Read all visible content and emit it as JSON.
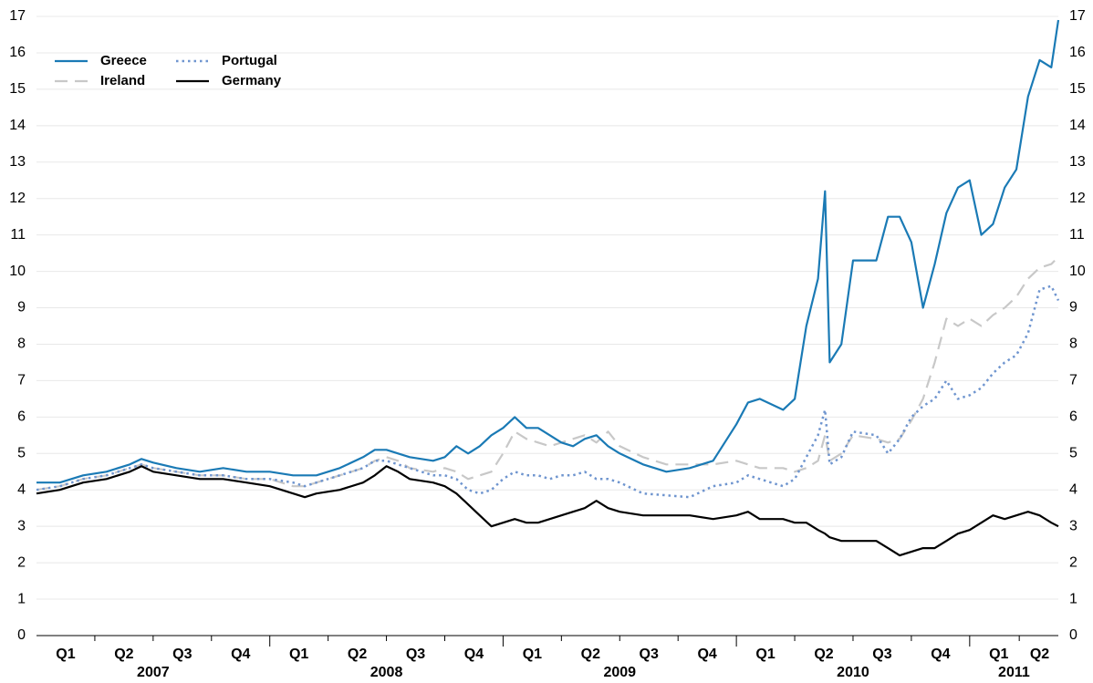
{
  "chart_data": {
    "type": "line",
    "x": [
      2007.0,
      2007.1,
      2007.2,
      2007.3,
      2007.4,
      2007.45,
      2007.5,
      2007.6,
      2007.7,
      2007.8,
      2007.9,
      2008.0,
      2008.1,
      2008.15,
      2008.2,
      2008.3,
      2008.4,
      2008.45,
      2008.5,
      2008.55,
      2008.6,
      2008.7,
      2008.75,
      2008.8,
      2008.85,
      2008.9,
      2008.95,
      2009.0,
      2009.05,
      2009.1,
      2009.15,
      2009.2,
      2009.25,
      2009.3,
      2009.35,
      2009.4,
      2009.45,
      2009.5,
      2009.6,
      2009.7,
      2009.8,
      2009.9,
      2010.0,
      2010.05,
      2010.1,
      2010.2,
      2010.25,
      2010.3,
      2010.35,
      2010.38,
      2010.4,
      2010.45,
      2010.5,
      2010.6,
      2010.65,
      2010.7,
      2010.75,
      2010.8,
      2010.85,
      2010.9,
      2010.95,
      2011.0,
      2011.05,
      2011.1,
      2011.15,
      2011.2,
      2011.25,
      2011.3,
      2011.35,
      2011.38
    ],
    "series": [
      {
        "name": "Greece",
        "color": "#1a7ab5",
        "dash": "solid",
        "values": [
          4.2,
          4.2,
          4.4,
          4.5,
          4.7,
          4.85,
          4.75,
          4.6,
          4.5,
          4.6,
          4.5,
          4.5,
          4.4,
          4.4,
          4.4,
          4.6,
          4.9,
          5.1,
          5.1,
          5.0,
          4.9,
          4.8,
          4.9,
          5.2,
          5.0,
          5.2,
          5.5,
          5.7,
          6.0,
          5.7,
          5.7,
          5.5,
          5.3,
          5.2,
          5.4,
          5.5,
          5.2,
          5.0,
          4.7,
          4.5,
          4.6,
          4.8,
          5.8,
          6.4,
          6.5,
          6.2,
          6.5,
          8.5,
          9.8,
          12.2,
          7.5,
          8.0,
          10.3,
          10.3,
          11.5,
          11.5,
          10.8,
          9.0,
          10.2,
          11.6,
          12.3,
          12.5,
          11.0,
          11.3,
          12.3,
          12.8,
          14.8,
          15.8,
          15.6,
          16.9
        ]
      },
      {
        "name": "Ireland",
        "color": "#c8c8c8",
        "dash": "dashed",
        "values": [
          4.0,
          4.1,
          4.3,
          4.4,
          4.6,
          4.7,
          4.6,
          4.5,
          4.4,
          4.4,
          4.3,
          4.3,
          4.1,
          4.1,
          4.2,
          4.4,
          4.6,
          4.8,
          4.9,
          4.8,
          4.6,
          4.5,
          4.6,
          4.5,
          4.3,
          4.4,
          4.5,
          5.0,
          5.6,
          5.4,
          5.3,
          5.2,
          5.3,
          5.4,
          5.5,
          5.3,
          5.6,
          5.2,
          4.9,
          4.7,
          4.7,
          4.7,
          4.8,
          4.7,
          4.6,
          4.6,
          4.5,
          4.6,
          4.8,
          5.5,
          4.8,
          5.0,
          5.5,
          5.4,
          5.3,
          5.4,
          5.9,
          6.5,
          7.5,
          8.7,
          8.5,
          8.7,
          8.5,
          8.8,
          9.0,
          9.3,
          9.8,
          10.1,
          10.2,
          10.4
        ]
      },
      {
        "name": "Portugal",
        "color": "#6f95cf",
        "dash": "dotted",
        "values": [
          4.0,
          4.1,
          4.3,
          4.4,
          4.6,
          4.7,
          4.6,
          4.5,
          4.4,
          4.4,
          4.3,
          4.3,
          4.2,
          4.1,
          4.2,
          4.4,
          4.6,
          4.8,
          4.8,
          4.7,
          4.6,
          4.4,
          4.4,
          4.3,
          4.0,
          3.9,
          4.0,
          4.3,
          4.5,
          4.4,
          4.4,
          4.3,
          4.4,
          4.4,
          4.5,
          4.3,
          4.3,
          4.2,
          3.9,
          3.85,
          3.8,
          4.1,
          4.2,
          4.4,
          4.3,
          4.1,
          4.3,
          4.9,
          5.5,
          6.2,
          4.7,
          4.9,
          5.6,
          5.5,
          5.0,
          5.4,
          6.0,
          6.3,
          6.5,
          7.0,
          6.5,
          6.6,
          6.8,
          7.2,
          7.5,
          7.7,
          8.3,
          9.5,
          9.6,
          9.2
        ]
      },
      {
        "name": "Germany",
        "color": "#000000",
        "dash": "solid",
        "values": [
          3.9,
          4.0,
          4.2,
          4.3,
          4.5,
          4.65,
          4.5,
          4.4,
          4.3,
          4.3,
          4.2,
          4.1,
          3.9,
          3.8,
          3.9,
          4.0,
          4.2,
          4.4,
          4.65,
          4.5,
          4.3,
          4.2,
          4.1,
          3.9,
          3.6,
          3.3,
          3.0,
          3.1,
          3.2,
          3.1,
          3.1,
          3.2,
          3.3,
          3.4,
          3.5,
          3.7,
          3.5,
          3.4,
          3.3,
          3.3,
          3.3,
          3.2,
          3.3,
          3.4,
          3.2,
          3.2,
          3.1,
          3.1,
          2.9,
          2.8,
          2.7,
          2.6,
          2.6,
          2.6,
          2.4,
          2.2,
          2.3,
          2.4,
          2.4,
          2.6,
          2.8,
          2.9,
          3.1,
          3.3,
          3.2,
          3.3,
          3.4,
          3.3,
          3.1,
          3.0
        ]
      }
    ],
    "xlim": [
      2007.0,
      2011.38
    ],
    "xticks": [
      {
        "value": 2007.125,
        "label": "Q1"
      },
      {
        "value": 2007.375,
        "label": "Q2"
      },
      {
        "value": 2007.625,
        "label": "Q3"
      },
      {
        "value": 2007.875,
        "label": "Q4"
      },
      {
        "value": 2008.125,
        "label": "Q1"
      },
      {
        "value": 2008.375,
        "label": "Q2"
      },
      {
        "value": 2008.625,
        "label": "Q3"
      },
      {
        "value": 2008.875,
        "label": "Q4"
      },
      {
        "value": 2009.125,
        "label": "Q1"
      },
      {
        "value": 2009.375,
        "label": "Q2"
      },
      {
        "value": 2009.625,
        "label": "Q3"
      },
      {
        "value": 2009.875,
        "label": "Q4"
      },
      {
        "value": 2010.125,
        "label": "Q1"
      },
      {
        "value": 2010.375,
        "label": "Q2"
      },
      {
        "value": 2010.625,
        "label": "Q3"
      },
      {
        "value": 2010.875,
        "label": "Q4"
      },
      {
        "value": 2011.125,
        "label": "Q1"
      },
      {
        "value": 2011.3,
        "label": "Q2"
      }
    ],
    "year_ticks": [
      {
        "value": 2007.5,
        "label": "2007"
      },
      {
        "value": 2008.5,
        "label": "2008"
      },
      {
        "value": 2009.5,
        "label": "2009"
      },
      {
        "value": 2010.5,
        "label": "2010"
      },
      {
        "value": 2011.19,
        "label": "2011"
      }
    ],
    "ylim": [
      0,
      17
    ],
    "yticks": [
      0,
      1,
      2,
      3,
      4,
      5,
      6,
      7,
      8,
      9,
      10,
      11,
      12,
      13,
      14,
      15,
      16,
      17
    ],
    "grid": true,
    "legend": "top-left"
  }
}
